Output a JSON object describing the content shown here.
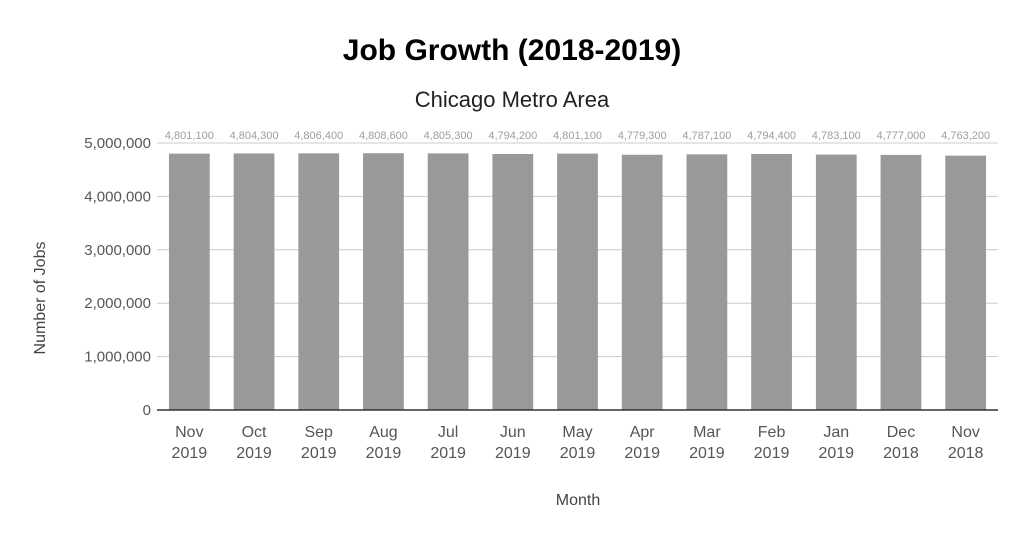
{
  "chart_data": {
    "type": "bar",
    "title": "Job Growth (2018-2019)",
    "subtitle": "Chicago Metro Area",
    "xlabel": "Month",
    "ylabel": "Number of Jobs",
    "categories": [
      [
        "Nov",
        "2019"
      ],
      [
        "Oct",
        "2019"
      ],
      [
        "Sep",
        "2019"
      ],
      [
        "Aug",
        "2019"
      ],
      [
        "Jul",
        "2019"
      ],
      [
        "Jun",
        "2019"
      ],
      [
        "May",
        "2019"
      ],
      [
        "Apr",
        "2019"
      ],
      [
        "Mar",
        "2019"
      ],
      [
        "Feb",
        "2019"
      ],
      [
        "Jan",
        "2019"
      ],
      [
        "Dec",
        "2018"
      ],
      [
        "Nov",
        "2018"
      ]
    ],
    "values": [
      4801100,
      4804300,
      4806400,
      4808600,
      4805300,
      4794200,
      4801100,
      4779300,
      4787100,
      4794400,
      4783100,
      4777000,
      4763200
    ],
    "data_labels": [
      "4,801,100",
      "4,804,300",
      "4,806,400",
      "4,808,600",
      "4,805,300",
      "4,794,200",
      "4,801,100",
      "4,779,300",
      "4,787,100",
      "4,794,400",
      "4,783,100",
      "4,777,000",
      "4,763,200"
    ],
    "ylim": [
      0,
      5000000
    ],
    "yticks": [
      0,
      1000000,
      2000000,
      3000000,
      4000000,
      5000000
    ],
    "ytick_labels": [
      "0",
      "1,000,000",
      "2,000,000",
      "3,000,000",
      "4,000,000",
      "5,000,000"
    ],
    "grid": true,
    "bar_color": "#999999",
    "gridline_color": "#cccccc",
    "axis_color": "#333333"
  }
}
